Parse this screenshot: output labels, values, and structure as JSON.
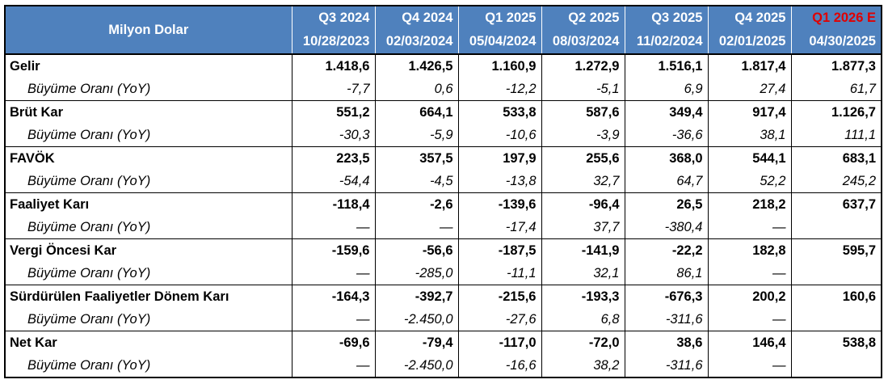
{
  "table": {
    "title": "Milyon Dolar",
    "columns": [
      {
        "quarter": "Q3 2024",
        "date": "10/28/2023",
        "estimate": false
      },
      {
        "quarter": "Q4 2024",
        "date": "02/03/2024",
        "estimate": false
      },
      {
        "quarter": "Q1 2025",
        "date": "05/04/2024",
        "estimate": false
      },
      {
        "quarter": "Q2 2025",
        "date": "08/03/2024",
        "estimate": false
      },
      {
        "quarter": "Q3 2025",
        "date": "11/02/2024",
        "estimate": false
      },
      {
        "quarter": "Q4 2025",
        "date": "02/01/2025",
        "estimate": false
      },
      {
        "quarter": "Q1 2026 E",
        "date": "04/30/2025",
        "estimate": true
      }
    ],
    "growth_label": "Büyüme Oranı (YoY)",
    "metrics": [
      {
        "name": "Gelir",
        "values": [
          "1.418,6",
          "1.426,5",
          "1.160,9",
          "1.272,9",
          "1.516,1",
          "1.817,4",
          "1.877,3"
        ],
        "growth": [
          "-7,7",
          "0,6",
          "-12,2",
          "-5,1",
          "6,9",
          "27,4",
          "61,7"
        ]
      },
      {
        "name": "Brüt Kar",
        "values": [
          "551,2",
          "664,1",
          "533,8",
          "587,6",
          "349,4",
          "917,4",
          "1.126,7"
        ],
        "growth": [
          "-30,3",
          "-5,9",
          "-10,6",
          "-3,9",
          "-36,6",
          "38,1",
          "111,1"
        ]
      },
      {
        "name": "FAVÖK",
        "values": [
          "223,5",
          "357,5",
          "197,9",
          "255,6",
          "368,0",
          "544,1",
          "683,1"
        ],
        "growth": [
          "-54,4",
          "-4,5",
          "-13,8",
          "32,7",
          "64,7",
          "52,2",
          "245,2"
        ]
      },
      {
        "name": "Faaliyet Karı",
        "values": [
          "-118,4",
          "-2,6",
          "-139,6",
          "-96,4",
          "26,5",
          "218,2",
          "637,7"
        ],
        "growth": [
          "—",
          "—",
          "-17,4",
          "37,7",
          "-380,4",
          "—",
          ""
        ]
      },
      {
        "name": "Vergi Öncesi Kar",
        "values": [
          "-159,6",
          "-56,6",
          "-187,5",
          "-141,9",
          "-22,2",
          "182,8",
          "595,7"
        ],
        "growth": [
          "—",
          "-285,0",
          "-11,1",
          "32,1",
          "86,1",
          "—",
          ""
        ]
      },
      {
        "name": "Sürdürülen Faaliyetler Dönem Karı",
        "values": [
          "-164,3",
          "-392,7",
          "-215,6",
          "-193,3",
          "-676,3",
          "200,2",
          "160,6"
        ],
        "growth": [
          "—",
          "-2.450,0",
          "-27,6",
          "6,8",
          "-311,6",
          "—",
          ""
        ]
      },
      {
        "name": "Net Kar",
        "values": [
          "-69,6",
          "-79,4",
          "-117,0",
          "-72,0",
          "38,6",
          "146,4",
          "538,8"
        ],
        "growth": [
          "—",
          "-2.450,0",
          "-16,6",
          "38,2",
          "-311,6",
          "—",
          ""
        ]
      }
    ]
  }
}
